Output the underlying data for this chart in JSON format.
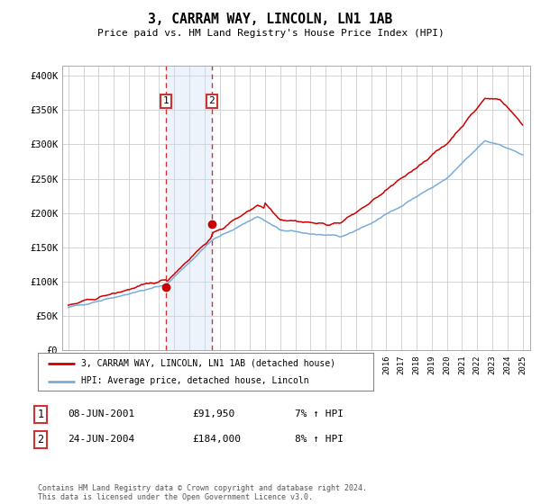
{
  "title": "3, CARRAM WAY, LINCOLN, LN1 1AB",
  "subtitle": "Price paid vs. HM Land Registry's House Price Index (HPI)",
  "y_ticks": [
    0,
    50000,
    100000,
    150000,
    200000,
    250000,
    300000,
    350000,
    400000
  ],
  "y_labels": [
    "£0",
    "£50K",
    "£100K",
    "£150K",
    "£200K",
    "£250K",
    "£300K",
    "£350K",
    "£400K"
  ],
  "sale1_date": 2001.44,
  "sale1_price": 91950,
  "sale1_label": "08-JUN-2001",
  "sale1_price_label": "£91,950",
  "sale1_hpi": "7% ↑ HPI",
  "sale2_date": 2004.48,
  "sale2_price": 184000,
  "sale2_label": "24-JUN-2004",
  "sale2_price_label": "£184,000",
  "sale2_hpi": "8% ↑ HPI",
  "legend_line1": "3, CARRAM WAY, LINCOLN, LN1 1AB (detached house)",
  "legend_line2": "HPI: Average price, detached house, Lincoln",
  "footnote": "Contains HM Land Registry data © Crown copyright and database right 2024.\nThis data is licensed under the Open Government Licence v3.0.",
  "line_color_red": "#cc0000",
  "line_color_blue": "#7aacda",
  "shade_color": "#ccddf5",
  "background_color": "#ffffff",
  "grid_color": "#cccccc",
  "box_color": "#cc3333"
}
